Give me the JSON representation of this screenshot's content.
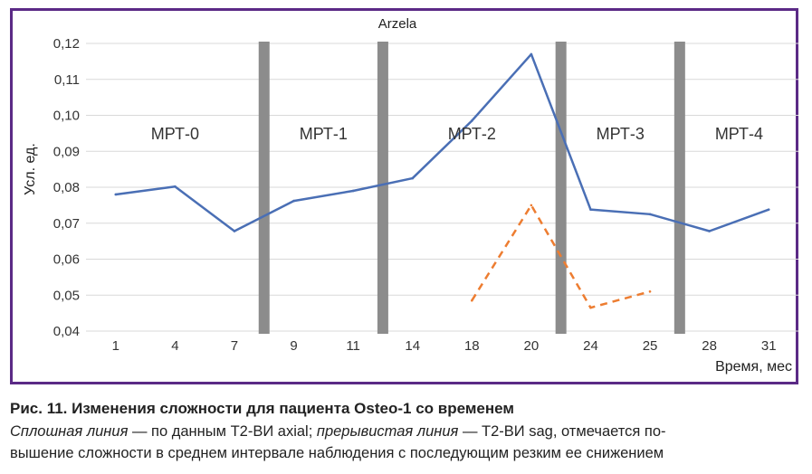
{
  "chart_data": {
    "type": "line",
    "title": "Arzela",
    "xlabel": "Время, мес",
    "ylabel": "Усл. ед.",
    "categories": [
      "1",
      "4",
      "7",
      "9",
      "11",
      "14",
      "18",
      "20",
      "24",
      "25",
      "28",
      "31"
    ],
    "ylim": [
      0.04,
      0.12
    ],
    "yticks": [
      "0,04",
      "0,05",
      "0,06",
      "0,07",
      "0,08",
      "0,09",
      "0,10",
      "0,11",
      "0,12"
    ],
    "grid": true,
    "series": [
      {
        "style": "solid",
        "color": "#4a6fb5",
        "values": [
          0.078,
          0.0802,
          0.0678,
          0.0762,
          0.079,
          0.0825,
          0.0985,
          0.117,
          0.0738,
          0.0725,
          0.0678,
          0.0738
        ]
      },
      {
        "style": "dashed",
        "color": "#ed7d31",
        "values": [
          null,
          null,
          null,
          null,
          null,
          null,
          0.0485,
          0.075,
          0.0465,
          0.051,
          null,
          null
        ]
      }
    ],
    "dividers": [
      {
        "after_category_index": 2,
        "color": "#8c8c8c"
      },
      {
        "after_category_index": 4,
        "color": "#8c8c8c"
      },
      {
        "after_category_index": 7,
        "color": "#8c8c8c"
      },
      {
        "after_category_index": 9,
        "color": "#8c8c8c"
      }
    ],
    "period_labels": [
      "МРТ-0",
      "МРТ-1",
      "МРТ-2",
      "МРТ-3",
      "МРТ-4"
    ]
  },
  "caption": {
    "title": "Рис. 11. Изменения сложности для пациента Osteo-1 со временем",
    "line1_italic_a": "Сплошная линия",
    "line1_text_a": " — по данным T2-ВИ axial; ",
    "line1_italic_b": "прерывистая линия",
    "line1_text_b": " — T2-ВИ sag, отмечается по-",
    "line2": "вышение сложности в среднем интервале наблюдения с последующим резким ее снижением"
  }
}
